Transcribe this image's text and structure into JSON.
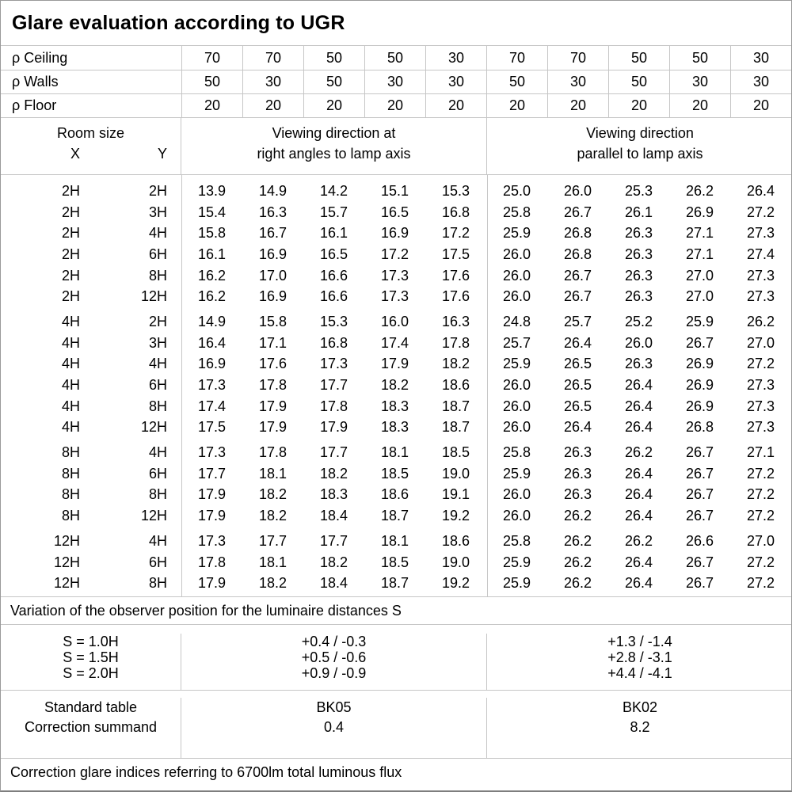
{
  "title": "Glare evaluation according to UGR",
  "reflectance_rows": [
    {
      "label": "ρ Ceiling",
      "values": [
        "70",
        "70",
        "50",
        "50",
        "30",
        "70",
        "70",
        "50",
        "50",
        "30"
      ]
    },
    {
      "label": "ρ Walls",
      "values": [
        "50",
        "30",
        "50",
        "30",
        "30",
        "50",
        "30",
        "50",
        "30",
        "30"
      ]
    },
    {
      "label": "ρ Floor",
      "values": [
        "20",
        "20",
        "20",
        "20",
        "20",
        "20",
        "20",
        "20",
        "20",
        "20"
      ]
    }
  ],
  "header": {
    "room_size": "Room size",
    "x_label": "X",
    "y_label": "Y",
    "group1_line1": "Viewing direction at",
    "group1_line2": "right angles to lamp axis",
    "group2_line1": "Viewing direction",
    "group2_line2": "parallel to lamp axis"
  },
  "groups": [
    {
      "name": "2H",
      "rows": [
        {
          "x": "2H",
          "y": "2H",
          "values": [
            "13.9",
            "14.9",
            "14.2",
            "15.1",
            "15.3",
            "25.0",
            "26.0",
            "25.3",
            "26.2",
            "26.4"
          ]
        },
        {
          "x": "2H",
          "y": "3H",
          "values": [
            "15.4",
            "16.3",
            "15.7",
            "16.5",
            "16.8",
            "25.8",
            "26.7",
            "26.1",
            "26.9",
            "27.2"
          ]
        },
        {
          "x": "2H",
          "y": "4H",
          "values": [
            "15.8",
            "16.7",
            "16.1",
            "16.9",
            "17.2",
            "25.9",
            "26.8",
            "26.3",
            "27.1",
            "27.3"
          ]
        },
        {
          "x": "2H",
          "y": "6H",
          "values": [
            "16.1",
            "16.9",
            "16.5",
            "17.2",
            "17.5",
            "26.0",
            "26.8",
            "26.3",
            "27.1",
            "27.4"
          ]
        },
        {
          "x": "2H",
          "y": "8H",
          "values": [
            "16.2",
            "17.0",
            "16.6",
            "17.3",
            "17.6",
            "26.0",
            "26.7",
            "26.3",
            "27.0",
            "27.3"
          ]
        },
        {
          "x": "2H",
          "y": "12H",
          "values": [
            "16.2",
            "16.9",
            "16.6",
            "17.3",
            "17.6",
            "26.0",
            "26.7",
            "26.3",
            "27.0",
            "27.3"
          ]
        }
      ]
    },
    {
      "name": "4H",
      "rows": [
        {
          "x": "4H",
          "y": "2H",
          "values": [
            "14.9",
            "15.8",
            "15.3",
            "16.0",
            "16.3",
            "24.8",
            "25.7",
            "25.2",
            "25.9",
            "26.2"
          ]
        },
        {
          "x": "4H",
          "y": "3H",
          "values": [
            "16.4",
            "17.1",
            "16.8",
            "17.4",
            "17.8",
            "25.7",
            "26.4",
            "26.0",
            "26.7",
            "27.0"
          ]
        },
        {
          "x": "4H",
          "y": "4H",
          "values": [
            "16.9",
            "17.6",
            "17.3",
            "17.9",
            "18.2",
            "25.9",
            "26.5",
            "26.3",
            "26.9",
            "27.2"
          ]
        },
        {
          "x": "4H",
          "y": "6H",
          "values": [
            "17.3",
            "17.8",
            "17.7",
            "18.2",
            "18.6",
            "26.0",
            "26.5",
            "26.4",
            "26.9",
            "27.3"
          ]
        },
        {
          "x": "4H",
          "y": "8H",
          "values": [
            "17.4",
            "17.9",
            "17.8",
            "18.3",
            "18.7",
            "26.0",
            "26.5",
            "26.4",
            "26.9",
            "27.3"
          ]
        },
        {
          "x": "4H",
          "y": "12H",
          "values": [
            "17.5",
            "17.9",
            "17.9",
            "18.3",
            "18.7",
            "26.0",
            "26.4",
            "26.4",
            "26.8",
            "27.3"
          ]
        }
      ]
    },
    {
      "name": "8H",
      "rows": [
        {
          "x": "8H",
          "y": "4H",
          "values": [
            "17.3",
            "17.8",
            "17.7",
            "18.1",
            "18.5",
            "25.8",
            "26.3",
            "26.2",
            "26.7",
            "27.1"
          ]
        },
        {
          "x": "8H",
          "y": "6H",
          "values": [
            "17.7",
            "18.1",
            "18.2",
            "18.5",
            "19.0",
            "25.9",
            "26.3",
            "26.4",
            "26.7",
            "27.2"
          ]
        },
        {
          "x": "8H",
          "y": "8H",
          "values": [
            "17.9",
            "18.2",
            "18.3",
            "18.6",
            "19.1",
            "26.0",
            "26.3",
            "26.4",
            "26.7",
            "27.2"
          ]
        },
        {
          "x": "8H",
          "y": "12H",
          "values": [
            "17.9",
            "18.2",
            "18.4",
            "18.7",
            "19.2",
            "26.0",
            "26.2",
            "26.4",
            "26.7",
            "27.2"
          ]
        }
      ]
    },
    {
      "name": "12H",
      "rows": [
        {
          "x": "12H",
          "y": "4H",
          "values": [
            "17.3",
            "17.7",
            "17.7",
            "18.1",
            "18.6",
            "25.8",
            "26.2",
            "26.2",
            "26.6",
            "27.0"
          ]
        },
        {
          "x": "12H",
          "y": "6H",
          "values": [
            "17.8",
            "18.1",
            "18.2",
            "18.5",
            "19.0",
            "25.9",
            "26.2",
            "26.4",
            "26.7",
            "27.2"
          ]
        },
        {
          "x": "12H",
          "y": "8H",
          "values": [
            "17.9",
            "18.2",
            "18.4",
            "18.7",
            "19.2",
            "25.9",
            "26.2",
            "26.4",
            "26.7",
            "27.2"
          ]
        }
      ]
    }
  ],
  "variation_note": "Variation of the observer position for the luminaire distances S",
  "variation": {
    "labels": [
      "S = 1.0H",
      "S = 1.5H",
      "S = 2.0H"
    ],
    "left": [
      "+0.4 / -0.3",
      "+0.5 / -0.6",
      "+0.9 / -0.9"
    ],
    "right": [
      "+1.3 / -1.4",
      "+2.8 / -3.1",
      "+4.4 / -4.1"
    ]
  },
  "summary": {
    "row_labels": [
      "Standard table",
      "Correction summand"
    ],
    "left": [
      "BK05",
      "0.4"
    ],
    "right": [
      "BK02",
      "8.2"
    ]
  },
  "footer_note": "Correction glare indices referring to 6700lm total luminous flux",
  "colors": {
    "grid_line": "#c6c6c6",
    "outer_border": "#9a9a9a",
    "text": "#000000",
    "background": "#ffffff"
  }
}
